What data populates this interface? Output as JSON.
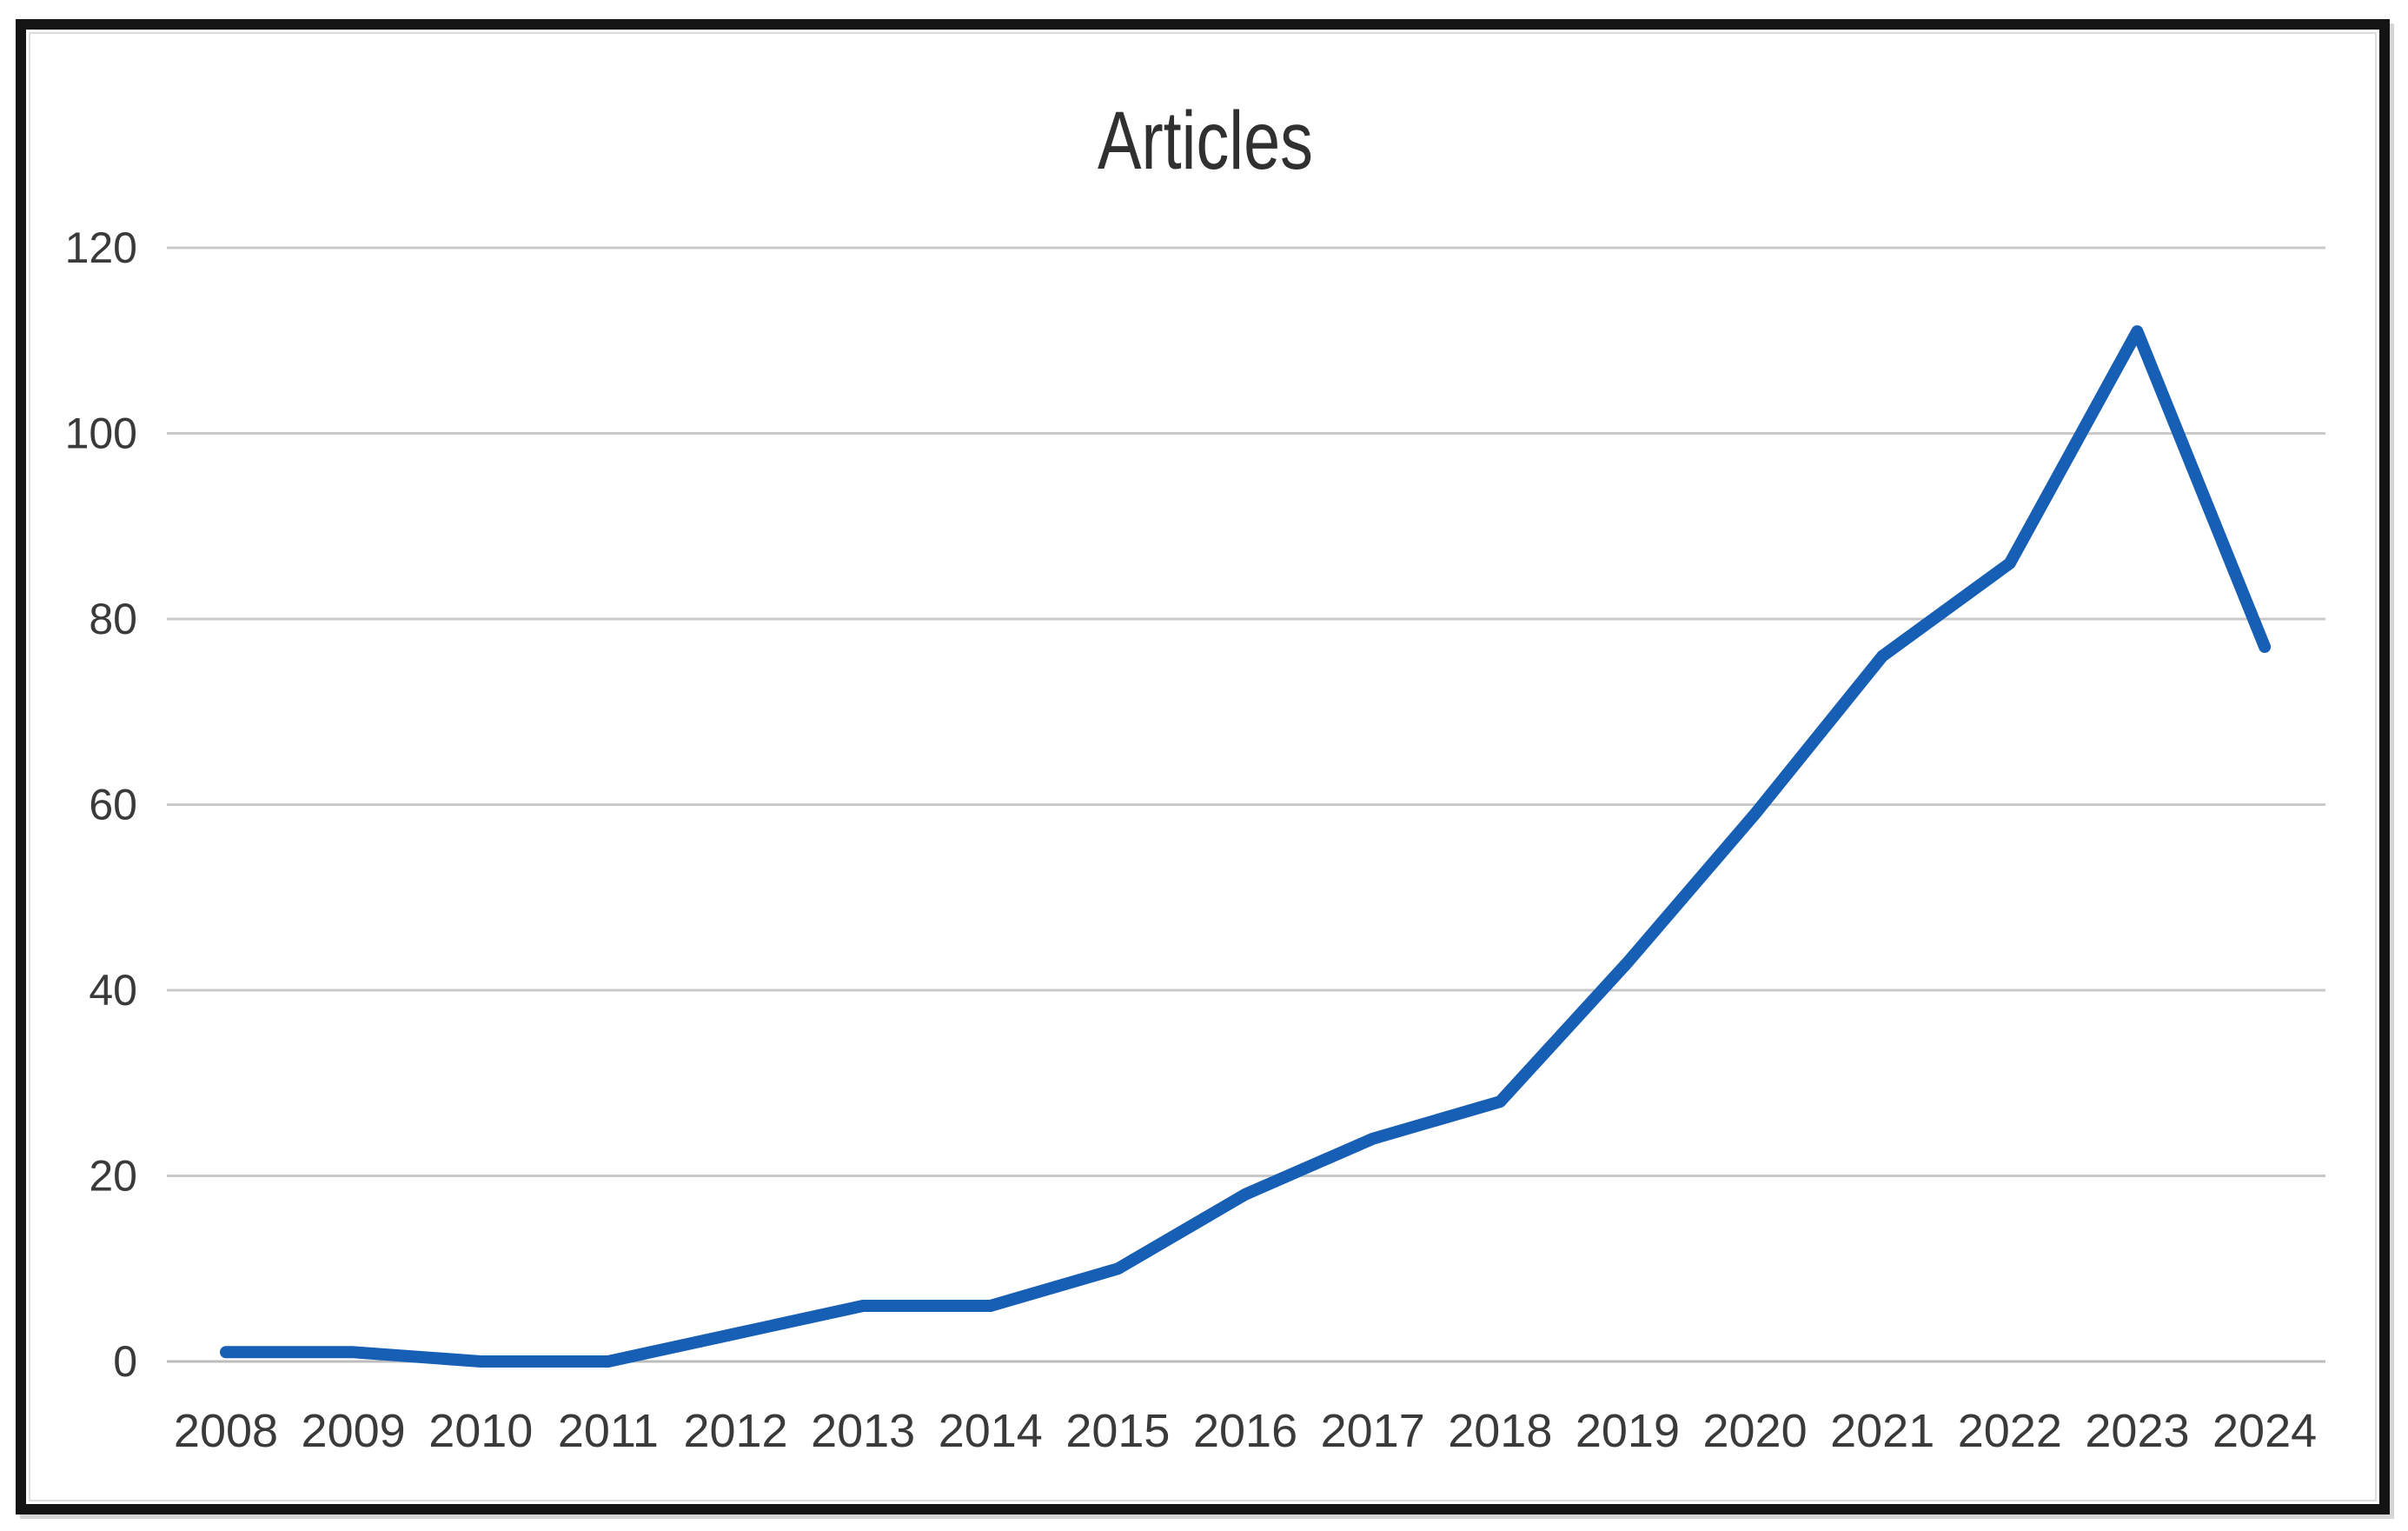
{
  "figure": {
    "background": "#ffffff",
    "border_color": "#141414",
    "inner_keyline_color": "#dcdcdc"
  },
  "chart_data": {
    "type": "line",
    "title": "Articles",
    "title_color": "#303030",
    "categories": [
      "2008",
      "2009",
      "2010",
      "2011",
      "2012",
      "2013",
      "2014",
      "2015",
      "2016",
      "2017",
      "2018",
      "2019",
      "2020",
      "2021",
      "2022",
      "2023",
      "2024"
    ],
    "series": [
      {
        "name": "Articles",
        "values": [
          1,
          1,
          0,
          0,
          3,
          6,
          6,
          10,
          18,
          24,
          28,
          43,
          59,
          76,
          86,
          111,
          77
        ],
        "color": "#175fb5",
        "line_width": 14
      }
    ],
    "xlabel": "",
    "ylabel": "",
    "ylim": [
      0,
      120
    ],
    "ytick_step": 20,
    "ytick_labels": [
      "0",
      "20",
      "40",
      "60",
      "80",
      "100",
      "120"
    ],
    "grid": "horizontal",
    "gridline_color": "#c9c9c9",
    "axis_line_color": "#bdbdbd",
    "tick_label_color": "#3a3a3a",
    "legend": "none"
  }
}
